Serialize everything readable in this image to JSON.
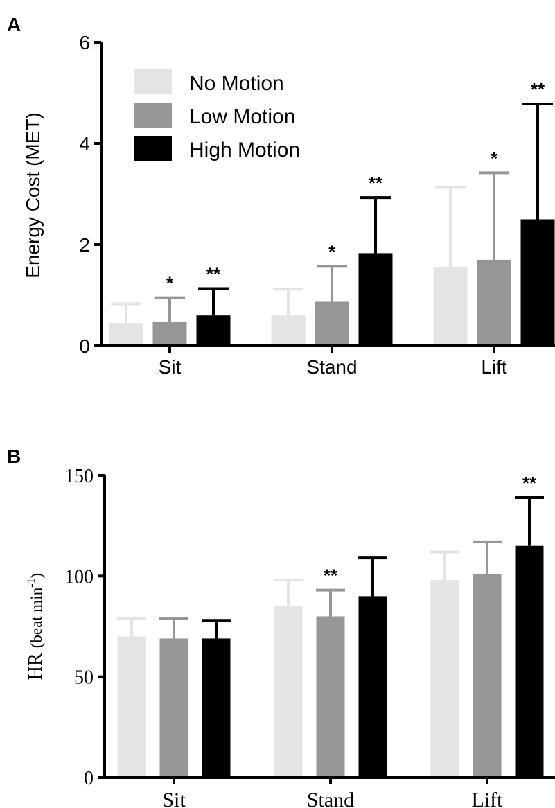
{
  "colors": {
    "no_motion": "#e4e4e4",
    "low_motion": "#969696",
    "high_motion": "#000000"
  },
  "chart_data": [
    {
      "panel": "A",
      "type": "bar",
      "ylabel": "Energy Cost (MET)",
      "ylim": [
        0,
        6
      ],
      "yticks": [
        "0",
        "2",
        "4",
        "6"
      ],
      "categories": [
        "Sit",
        "Stand",
        "Lift"
      ],
      "legend": {
        "placement": "top-left",
        "entries": [
          "No Motion",
          "Low Motion",
          "High Motion"
        ]
      },
      "series": [
        {
          "name": "No Motion",
          "color_key": "no_motion",
          "values": [
            0.45,
            0.6,
            1.55
          ],
          "errors": [
            0.38,
            0.52,
            1.58
          ],
          "marks": [
            "",
            "",
            ""
          ]
        },
        {
          "name": "Low Motion",
          "color_key": "low_motion",
          "values": [
            0.48,
            0.87,
            1.7
          ],
          "errors": [
            0.47,
            0.7,
            1.72
          ],
          "marks": [
            "*",
            "*",
            "*"
          ]
        },
        {
          "name": "High Motion",
          "color_key": "high_motion",
          "values": [
            0.6,
            1.83,
            2.5
          ],
          "errors": [
            0.53,
            1.1,
            2.28
          ],
          "marks": [
            "**",
            "**",
            "**"
          ]
        }
      ]
    },
    {
      "panel": "B",
      "type": "bar",
      "ylabel_main": "HR ",
      "ylabel_paren": "(beat min",
      "ylabel_sup": "-1",
      "ylabel_close": ")",
      "ylim": [
        0,
        150
      ],
      "yticks": [
        "0",
        "50",
        "100",
        "150"
      ],
      "categories": [
        "Sit",
        "Stand",
        "Lift"
      ],
      "series": [
        {
          "name": "No Motion",
          "color_key": "no_motion",
          "values": [
            70,
            85,
            98
          ],
          "errors": [
            9,
            13,
            14
          ],
          "marks": [
            "",
            "",
            ""
          ]
        },
        {
          "name": "Low Motion",
          "color_key": "low_motion",
          "values": [
            69,
            80,
            101
          ],
          "errors": [
            10,
            13,
            16
          ],
          "marks": [
            "",
            "**",
            ""
          ]
        },
        {
          "name": "High Motion",
          "color_key": "high_motion",
          "values": [
            69,
            90,
            115
          ],
          "errors": [
            9,
            19,
            24
          ],
          "marks": [
            "",
            "",
            "**"
          ]
        }
      ]
    }
  ]
}
